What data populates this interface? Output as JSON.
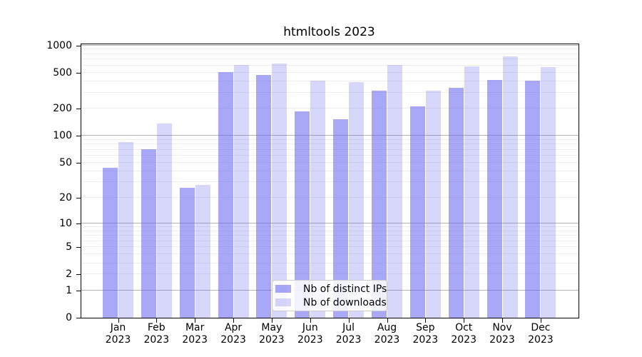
{
  "chart_data": {
    "type": "bar",
    "title": "htmltools 2023",
    "categories": [
      "Jan",
      "Feb",
      "Mar",
      "Apr",
      "May",
      "Jun",
      "Jul",
      "Aug",
      "Sep",
      "Oct",
      "Nov",
      "Dec"
    ],
    "x_tick_year": "2023",
    "series": [
      {
        "name": "Nb of distinct IPs",
        "color": "rgba(97,97,240,0.55)",
        "values": [
          44,
          71,
          26,
          510,
          472,
          187,
          154,
          316,
          212,
          342,
          419,
          405
        ]
      },
      {
        "name": "Nb of downloads",
        "color": "rgba(97,97,240,0.25)",
        "values": [
          86,
          136,
          28,
          612,
          630,
          405,
          394,
          605,
          318,
          587,
          756,
          582
        ]
      }
    ],
    "y_ticks": [
      0,
      1,
      2,
      5,
      10,
      20,
      50,
      100,
      200,
      500,
      1000
    ],
    "y_scale": "log10(1+y)",
    "ylim": [
      0,
      1030
    ],
    "grid": {
      "major_color": "#b3b3b3",
      "minor_color": "#ededed"
    },
    "legend_position": "lower center",
    "axis_color": "#000000",
    "background": "#ffffff"
  }
}
